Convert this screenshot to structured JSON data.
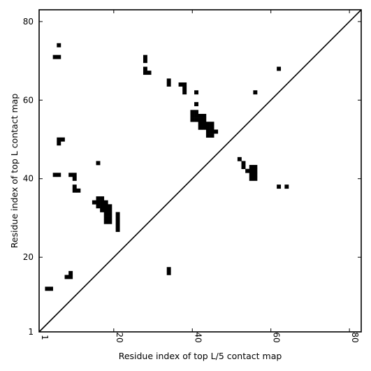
{
  "chart_data": {
    "type": "heatmap",
    "title": "",
    "xlabel": "Residue index of top L/5 contact map",
    "ylabel": "Residue index of top L contact map",
    "xlim": [
      1,
      83
    ],
    "ylim": [
      1,
      83
    ],
    "xticks": [
      1,
      20,
      40,
      60,
      80
    ],
    "yticks": [
      1,
      20,
      40,
      60,
      80
    ],
    "diagonal": true,
    "grid": false,
    "cell_color": "#000000",
    "background_color": "#ffffff",
    "cells": [
      [
        6,
        74
      ],
      [
        5,
        71
      ],
      [
        6,
        71
      ],
      [
        28,
        71
      ],
      [
        28,
        70
      ],
      [
        28,
        68
      ],
      [
        29,
        67
      ],
      [
        28,
        67
      ],
      [
        34,
        65
      ],
      [
        34,
        64
      ],
      [
        37,
        64
      ],
      [
        38,
        64
      ],
      [
        38,
        63
      ],
      [
        38,
        62
      ],
      [
        41,
        62
      ],
      [
        56,
        62
      ],
      [
        62,
        68
      ],
      [
        41,
        59
      ],
      [
        40,
        57
      ],
      [
        41,
        57
      ],
      [
        40,
        56
      ],
      [
        41,
        56
      ],
      [
        42,
        56
      ],
      [
        43,
        56
      ],
      [
        40,
        55
      ],
      [
        41,
        55
      ],
      [
        42,
        55
      ],
      [
        43,
        55
      ],
      [
        42,
        54
      ],
      [
        43,
        54
      ],
      [
        44,
        54
      ],
      [
        45,
        54
      ],
      [
        42,
        53
      ],
      [
        43,
        53
      ],
      [
        44,
        53
      ],
      [
        45,
        53
      ],
      [
        44,
        52
      ],
      [
        45,
        52
      ],
      [
        46,
        52
      ],
      [
        44,
        51
      ],
      [
        45,
        51
      ],
      [
        6,
        50
      ],
      [
        7,
        50
      ],
      [
        6,
        49
      ],
      [
        52,
        45
      ],
      [
        53,
        44
      ],
      [
        53,
        43
      ],
      [
        55,
        43
      ],
      [
        56,
        43
      ],
      [
        54,
        42
      ],
      [
        55,
        42
      ],
      [
        56,
        42
      ],
      [
        55,
        41
      ],
      [
        56,
        41
      ],
      [
        55,
        40
      ],
      [
        56,
        40
      ],
      [
        16,
        44
      ],
      [
        5,
        41
      ],
      [
        6,
        41
      ],
      [
        9,
        41
      ],
      [
        10,
        41
      ],
      [
        10,
        40
      ],
      [
        10,
        38
      ],
      [
        62,
        38
      ],
      [
        64,
        38
      ],
      [
        10,
        37
      ],
      [
        11,
        37
      ],
      [
        15,
        34
      ],
      [
        16,
        35
      ],
      [
        17,
        35
      ],
      [
        16,
        34
      ],
      [
        17,
        34
      ],
      [
        18,
        34
      ],
      [
        16,
        33
      ],
      [
        17,
        33
      ],
      [
        18,
        33
      ],
      [
        19,
        33
      ],
      [
        17,
        32
      ],
      [
        18,
        32
      ],
      [
        19,
        32
      ],
      [
        21,
        31
      ],
      [
        18,
        31
      ],
      [
        19,
        31
      ],
      [
        21,
        30
      ],
      [
        18,
        30
      ],
      [
        19,
        30
      ],
      [
        21,
        29
      ],
      [
        18,
        29
      ],
      [
        19,
        29
      ],
      [
        21,
        28
      ],
      [
        21,
        27
      ],
      [
        34,
        17
      ],
      [
        34,
        16
      ],
      [
        9,
        16
      ],
      [
        8,
        15
      ],
      [
        9,
        15
      ],
      [
        3,
        12
      ],
      [
        4,
        12
      ]
    ]
  }
}
